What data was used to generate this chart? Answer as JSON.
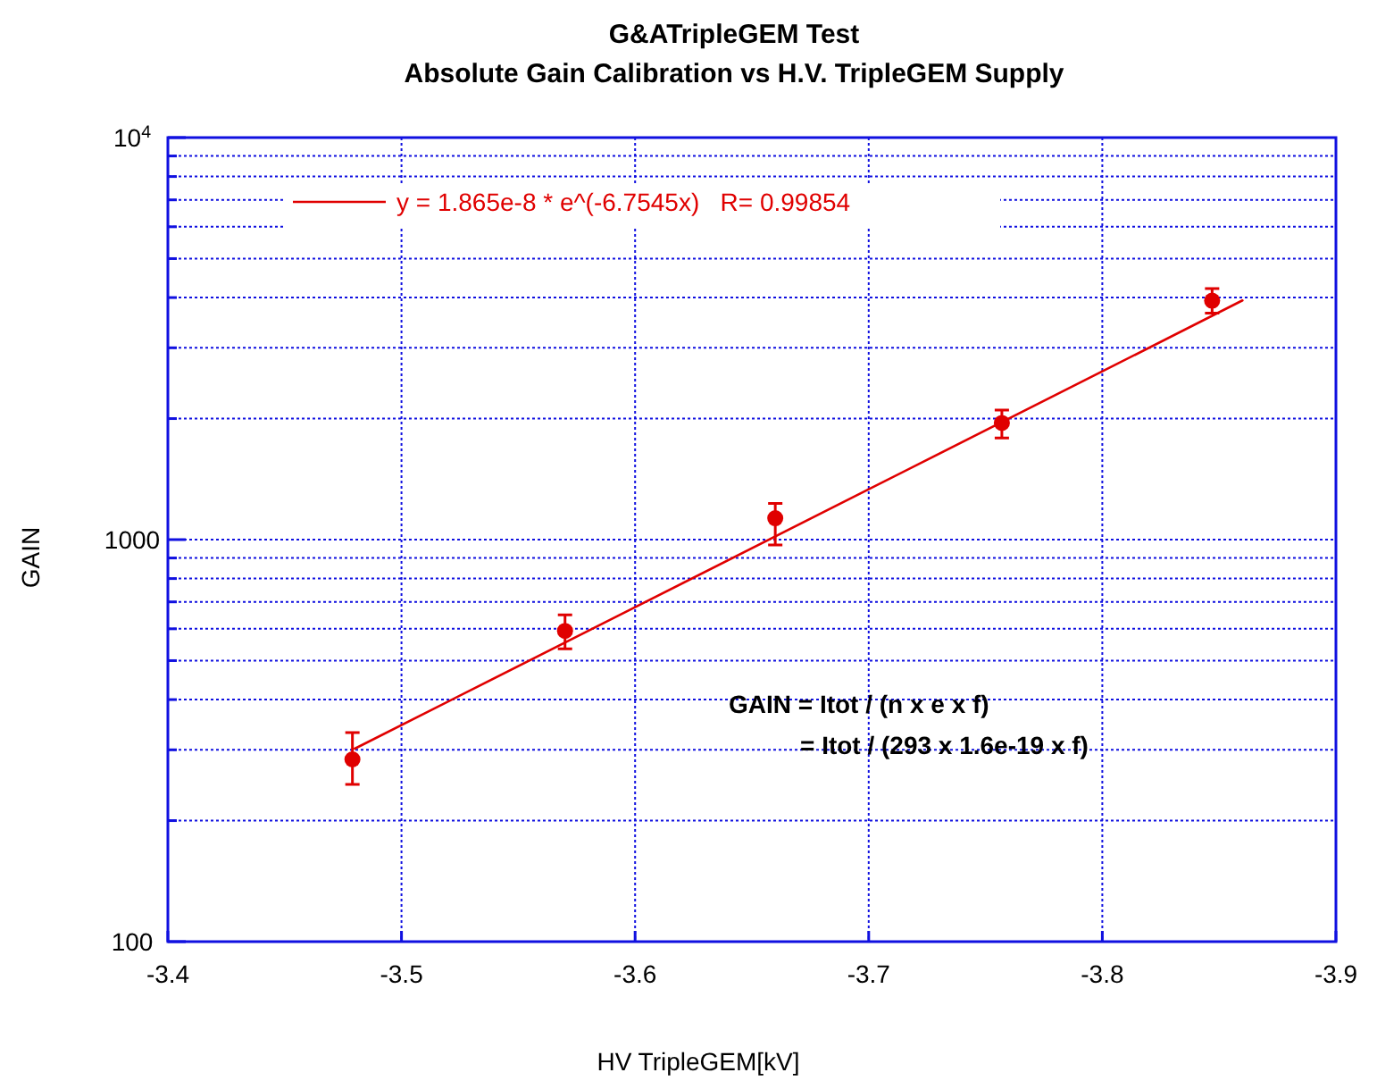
{
  "chart_data": {
    "type": "scatter",
    "title": "G&ATripleGEM Test",
    "subtitle": "Absolute Gain Calibration vs H.V. TripleGEM Supply",
    "xlabel": "HV TripleGEM[kV]",
    "ylabel": "GAIN",
    "xlim": [
      -3.4,
      -3.9
    ],
    "xticks": [
      -3.4,
      -3.5,
      -3.6,
      -3.7,
      -3.8,
      -3.9
    ],
    "ylim": [
      100,
      10000
    ],
    "yticks": [
      100,
      {
        "value": 200,
        "label": null
      },
      {
        "value": 300,
        "label": null
      },
      {
        "value": 400,
        "label": null
      },
      {
        "value": 500,
        "label": null
      },
      {
        "value": 600,
        "label": null
      },
      {
        "value": 700,
        "label": null
      },
      {
        "value": 800,
        "label": null
      },
      {
        "value": 900,
        "label": null
      },
      1000,
      {
        "value": 2000,
        "label": null
      },
      {
        "value": 3000,
        "label": null
      },
      {
        "value": 4000,
        "label": null
      },
      {
        "value": 5000,
        "label": null
      },
      {
        "value": 6000,
        "label": null
      },
      {
        "value": 7000,
        "label": null
      },
      {
        "value": 8000,
        "label": null
      },
      {
        "value": 9000,
        "label": null
      },
      {
        "value": 10000,
        "label": "10$^{4}$"
      }
    ],
    "log": "y",
    "grid": true,
    "legend": "top left",
    "marker": "circle",
    "series": [
      {
        "color": "#e00000",
        "x": [
          -3.479,
          -3.57,
          -3.66,
          -3.757,
          -3.847
        ],
        "values": [
          284,
          593,
          1130,
          1950,
          3930
        ],
        "errors": [
          [
            246,
            331
          ],
          [
            535,
            650
          ],
          [
            970,
            1230
          ],
          [
            1790,
            2100
          ],
          [
            3660,
            4210
          ]
        ]
      },
      {
        "type": "line",
        "name": "y = 1.865e-8 * e^(-6.7545x)   R= 0.99854",
        "color": "#e00000",
        "marker": "none",
        "line_style": "solid",
        "x": [
          -3.48,
          -3.6,
          -3.7,
          -3.8,
          -3.86
        ],
        "values": [
          302,
          679,
          1334,
          2621,
          3935
        ]
      }
    ],
    "annotations": [
      "GAIN = Itot / (n x e x f)",
      "= Itot / (293 x 1.6e-19 x f)"
    ]
  }
}
